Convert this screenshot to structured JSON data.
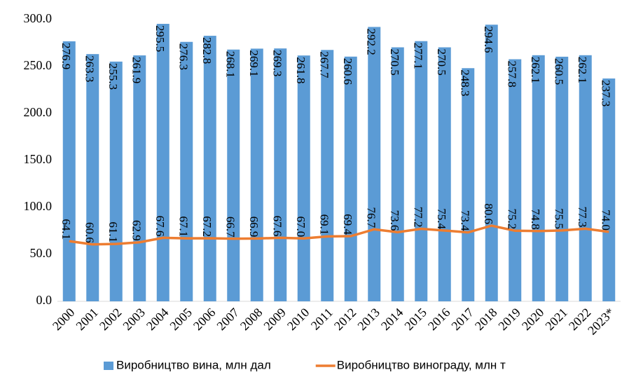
{
  "chart_data": {
    "type": "bar_line",
    "categories": [
      "2000",
      "2001",
      "2002",
      "2003",
      "2004",
      "2005",
      "2006",
      "2007",
      "2008",
      "2009",
      "2010",
      "2011",
      "2012",
      "2013",
      "2014",
      "2015",
      "2016",
      "2017",
      "2018",
      "2019",
      "2020",
      "2021",
      "2022",
      "2023*"
    ],
    "series": [
      {
        "name": "Виробництво вина, млн дал",
        "type": "bar",
        "color": "#5b9bd5",
        "values": [
          276.9,
          263.3,
          255.3,
          261.9,
          295.5,
          276.3,
          282.8,
          268.1,
          269.1,
          269.3,
          261.8,
          267.7,
          260.6,
          292.2,
          270.5,
          277.1,
          270.5,
          248.3,
          294.6,
          257.8,
          262.1,
          260.5,
          262.1,
          237.3
        ],
        "value_labels": [
          "276.9",
          "263.3",
          "255.3",
          "261.9",
          "295.5",
          "276.3",
          "282.8",
          "268.1",
          "269.1",
          "269.3",
          "261.8",
          "267.7",
          "260.6",
          "292.2",
          "270.5",
          "277.1",
          "270.5",
          "248.3",
          "294.6",
          "257.8",
          "262.1",
          "260.5",
          "262.1",
          "237.3"
        ]
      },
      {
        "name": "Виробництво винограду, млн т",
        "type": "line",
        "color": "#ed7d31",
        "values": [
          64.1,
          60.6,
          61.1,
          62.9,
          67.6,
          67.1,
          67.2,
          66.7,
          66.9,
          67.6,
          67.0,
          69.1,
          69.4,
          76.7,
          73.6,
          77.2,
          75.4,
          73.4,
          80.6,
          75.2,
          74.8,
          75.5,
          77.3,
          74.0
        ],
        "value_labels": [
          "64.1",
          "60.6",
          "61.1",
          "62.9",
          "67.6",
          "67.1",
          "67.2",
          "66.7",
          "66.9",
          "67.6",
          "67.0",
          "69.1",
          "69.4",
          "76.7",
          "73.6",
          "77.2",
          "75.4",
          "73.4",
          "80.6",
          "75.2",
          "74.8",
          "75.5",
          "77.3",
          "74.0"
        ]
      }
    ],
    "ylim": [
      0,
      300
    ],
    "yticks": [
      {
        "value": 0,
        "label": "0.0"
      },
      {
        "value": 50,
        "label": "50.0"
      },
      {
        "value": 100,
        "label": "100.0"
      },
      {
        "value": 150,
        "label": "150.0"
      },
      {
        "value": 200,
        "label": "200.0"
      },
      {
        "value": 250,
        "label": "250.0"
      },
      {
        "value": 300,
        "label": "300.0"
      }
    ],
    "grid": false,
    "legend": "bottom"
  }
}
